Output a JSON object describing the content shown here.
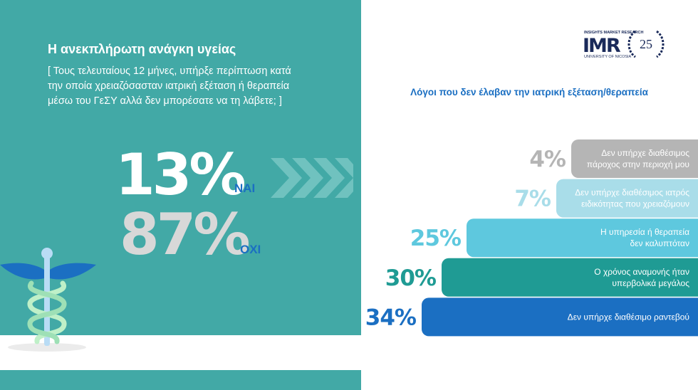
{
  "header": {
    "title": "Η ανεκπλήρωτη ανάγκη υγείας",
    "question": [
      "[ Τους τελευταίους 12 μήνες, υπήρξε περίπτωση κατά",
      "την οποία χρειαζόσασταν ιατρική εξέταση ή θεραπεία",
      "μέσω του ΓεΣΥ αλλά δεν μπορέσατε να τη λάβετε; ]"
    ]
  },
  "stats": [
    {
      "text": "13%",
      "answer": "ΝΑΙ"
    },
    {
      "text": "87%",
      "answer": "ΟΧΙ"
    }
  ],
  "logo": {
    "top": "INSIGHTS MARKET RESEARCH",
    "name": "IMR",
    "bottom": "UNIVERSITY OF NICOSIA",
    "badge": "25"
  },
  "chart_data": {
    "type": "bar",
    "orientation": "horizontal",
    "title": "Λόγοι που δεν έλαβαν την ιατρική εξέταση/θεραπεία",
    "categories": [
      [
        "Δεν υπήρχε διαθέσιμος",
        "πάροχος στην περιοχή μου"
      ],
      [
        "Δεν υπήρχε διαθέσιμος ιατρός",
        "ειδικότητας που χρειαζόμουν"
      ],
      [
        "Η υπηρεσία ή θεραπεία",
        "δεν καλυπτόταν"
      ],
      [
        "Ο χρόνος αναμονής ήταν",
        "υπερβολικά μεγάλος"
      ],
      [
        "Δεν υπήρχε διαθέσιμο ραντεβού"
      ]
    ],
    "values": [
      4,
      7,
      25,
      30,
      34
    ],
    "value_labels": [
      "4%",
      "7%",
      "25%",
      "30%",
      "34%"
    ],
    "colors": [
      "#b5b5b5",
      "#a9dde9",
      "#5ec8de",
      "#1f9b94",
      "#1b6fc2"
    ]
  }
}
